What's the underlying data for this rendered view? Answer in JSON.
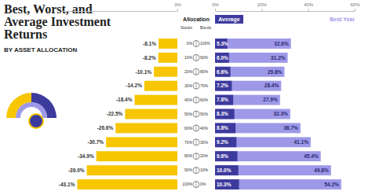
{
  "chart_data": [
    {
      "type": "bar",
      "orientation": "horizontal",
      "title": "Best, Worst, and Average Investment Returns",
      "subtitle": "BY ASSET ALLOCATION",
      "categories": [
        null,
        null,
        null,
        null,
        null,
        null,
        null,
        null,
        null,
        null,
        null
      ],
      "values": [
        -8.1,
        -8.2,
        -10.1,
        -14.2,
        -18.4,
        -22.5,
        -26.6,
        -30.7,
        -34.9,
        -39.0,
        -43.1
      ],
      "value_labels": [
        "-8.1%",
        "-8.2%",
        "-10.1%",
        "-14.2%",
        "-18.4%",
        "-22.5%",
        "-26.6%",
        "-30.7%",
        "-34.9%",
        "-39.0%",
        "-43.1%"
      ],
      "color": "#f7c600",
      "xlim": [
        -50,
        0
      ],
      "xticks": [
        {
          "value": 0,
          "label": "0%"
        }
      ],
      "data_labels": true
    },
    {
      "type": "bar",
      "orientation": "horizontal",
      "categories": [
        null,
        null,
        null,
        null,
        null,
        null,
        null,
        null,
        null,
        null,
        null
      ],
      "series": [
        {
          "name": "Average",
          "color": "#3d3a9e",
          "values": [
            5.3,
            6.0,
            6.6,
            7.2,
            7.8,
            8.3,
            8.8,
            9.2,
            9.6,
            10.0,
            10.3
          ],
          "value_labels": [
            "5.3%",
            "6.0%",
            "6.6%",
            "7.2%",
            "7.8%",
            "8.3%",
            "8.8%",
            "9.2%",
            "9.6%",
            "10.0%",
            "10.3%"
          ]
        },
        {
          "name": "Best Year",
          "color": "#9d99e8",
          "values": [
            32.6,
            31.2,
            29.8,
            28.4,
            27.9,
            32.3,
            36.7,
            41.1,
            45.4,
            49.8,
            54.2
          ],
          "value_labels": [
            "32.6%",
            "31.2%",
            "29.8%",
            "28.4%",
            "27.9%",
            "32.3%",
            "36.7%",
            "41.1%",
            "45.4%",
            "49.8%",
            "54.2%"
          ]
        }
      ],
      "xlim": [
        0,
        60
      ],
      "xticks": [
        {
          "value": 0,
          "label": "0%"
        },
        {
          "value": 20,
          "label": "20%"
        },
        {
          "value": 40,
          "label": "40%"
        },
        {
          "value": 60,
          "label": "60%"
        }
      ],
      "legend": "top",
      "data_labels": true
    }
  ],
  "allocation": {
    "title": "Allocation",
    "stocks_header": "Stocks",
    "bonds_header": "Bonds",
    "stocks": [
      "0%",
      "10%",
      "20%",
      "30%",
      "40%",
      "50%",
      "60%",
      "70%",
      "80%",
      "90%",
      "100%"
    ],
    "bonds": [
      "100%",
      "90%",
      "80%",
      "70%",
      "60%",
      "50%",
      "40%",
      "30%",
      "20%",
      "10%",
      "0%"
    ]
  }
}
